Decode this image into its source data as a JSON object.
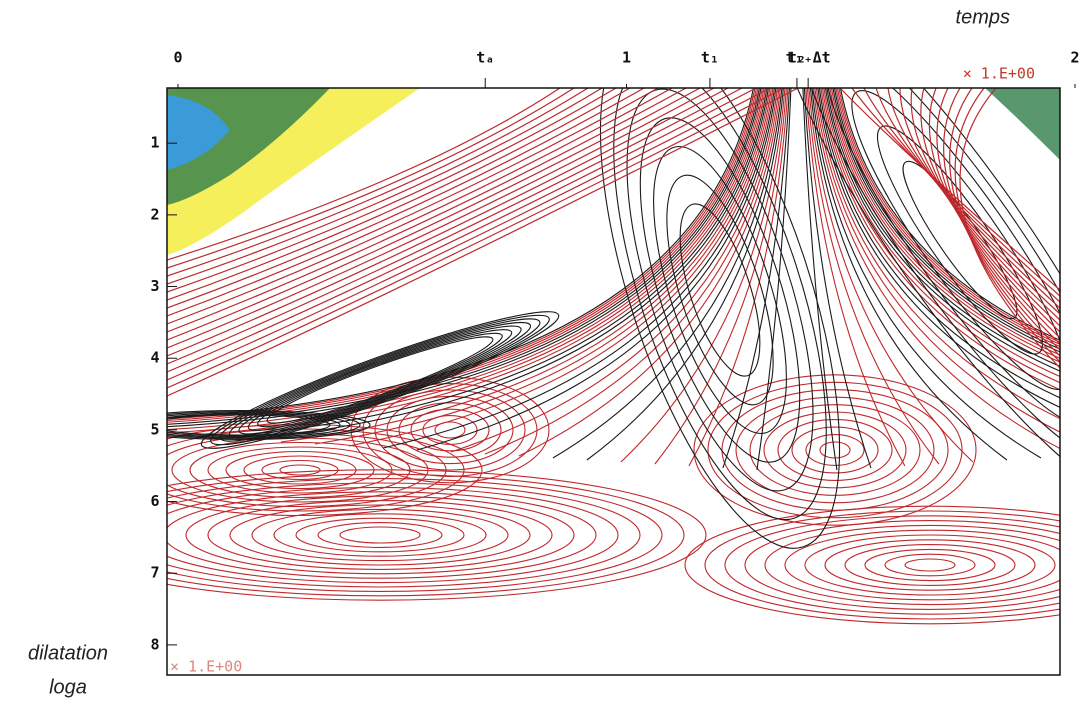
{
  "chart_data": {
    "type": "contour",
    "x_label": "temps",
    "y_label_line1": "dilatation",
    "y_label_line2": "loga",
    "x_scale_label": "× 1.E+00",
    "y_scale_label": "× 1.E+00",
    "xlim": [
      0,
      2
    ],
    "ylim": [
      0.23,
      8.42
    ],
    "xticks": [
      0,
      {
        "value": 0.685,
        "label": "tₐ"
      },
      1,
      {
        "value": 1.186,
        "label": "t₁"
      },
      {
        "value": 1.38,
        "label": "t₂"
      },
      {
        "value": 1.405,
        "label": "t₁₊Δt"
      },
      2
    ],
    "yticks": [
      1,
      2,
      3,
      4,
      5,
      6,
      7,
      8
    ],
    "y_inverted": true
  }
}
